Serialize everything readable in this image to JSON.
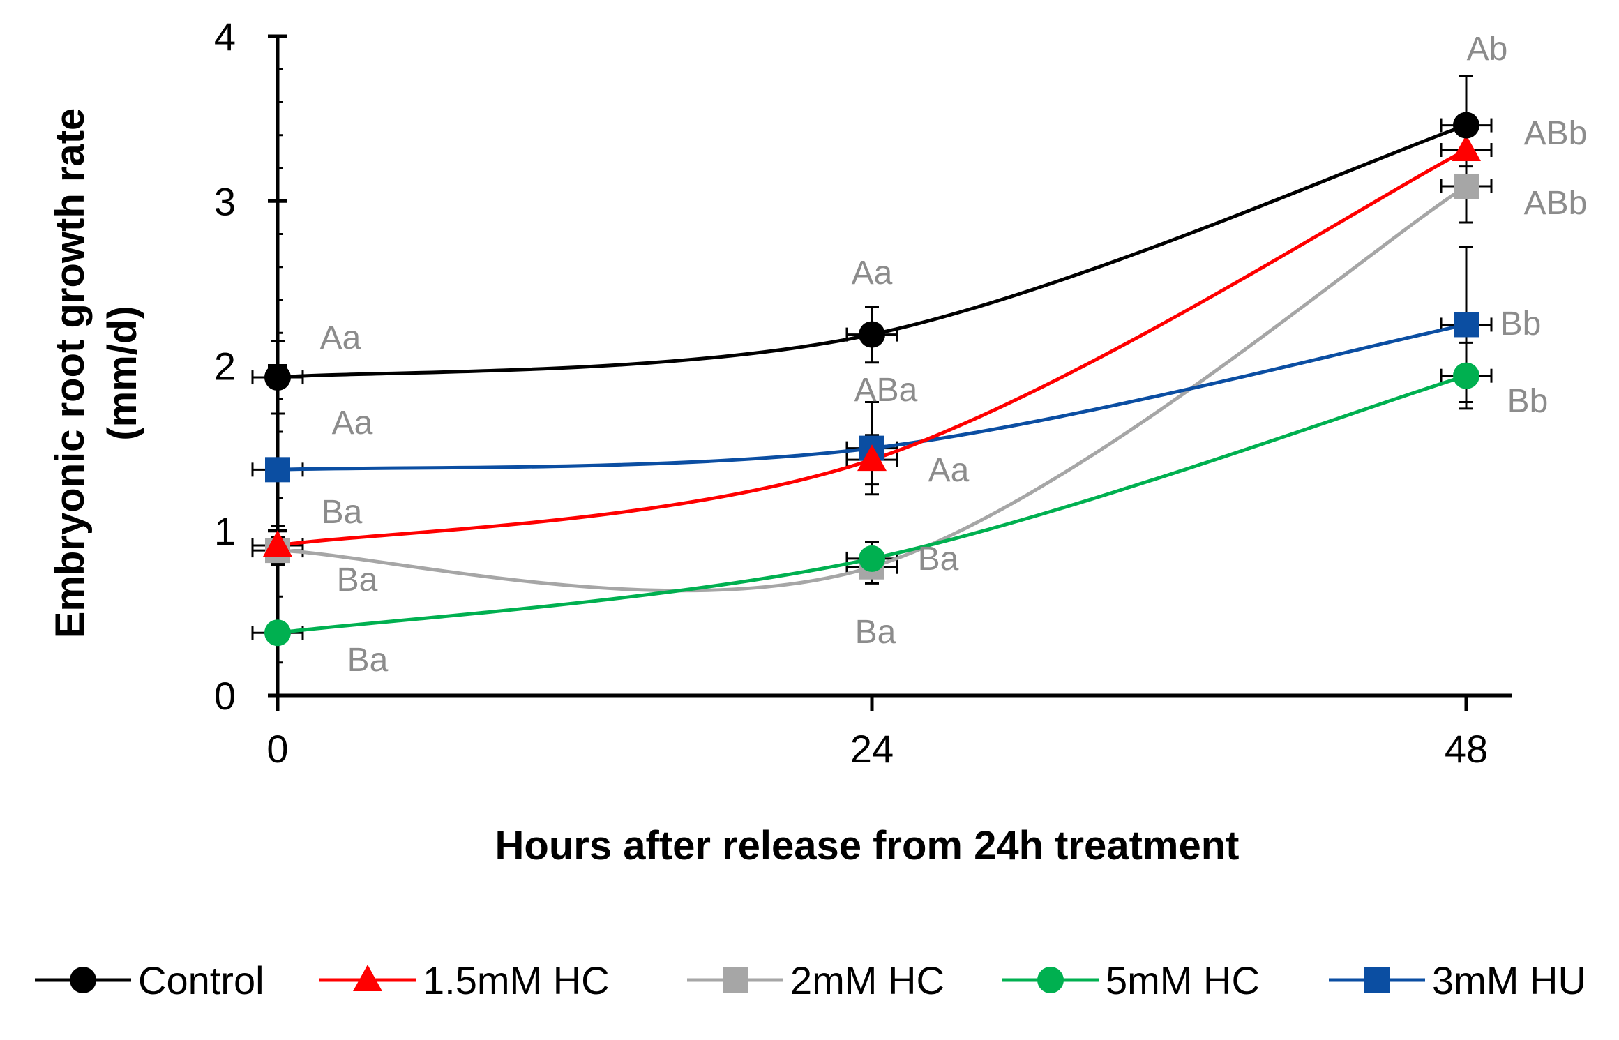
{
  "chart_data": {
    "type": "line",
    "title": "",
    "xlabel": "Hours after release from 24h treatment",
    "ylabel_line1": "Embryonic root growth rate",
    "ylabel_line2": "(mm/d)",
    "x": [
      0,
      24,
      48
    ],
    "x_tick_labels": [
      "0",
      "24",
      "48"
    ],
    "ylim": [
      0,
      4
    ],
    "y_ticks": [
      0,
      1,
      2,
      3,
      4
    ],
    "y_tick_labels": [
      "0",
      "1",
      "2",
      "3",
      "4"
    ],
    "legend_position": "bottom",
    "series": [
      {
        "name": "Control",
        "color": "#000000",
        "marker": "circle",
        "values": [
          1.93,
          2.19,
          3.46
        ],
        "errors": [
          0.22,
          0.17,
          0.3
        ],
        "annotations": [
          "Aa",
          "Aa",
          "Ab"
        ]
      },
      {
        "name": "1.5mM HC",
        "color": "#ff0000",
        "marker": "triangle",
        "values": [
          0.91,
          1.43,
          3.31
        ],
        "errors": [
          0.12,
          0.15,
          0.1
        ],
        "annotations": [
          "Ba",
          "Aa",
          "ABb"
        ]
      },
      {
        "name": "2mM HC",
        "color": "#a6a6a6",
        "marker": "square",
        "values": [
          0.88,
          0.78,
          3.09
        ],
        "errors": [
          0.08,
          0.1,
          0.22
        ],
        "annotations": [
          "Ba",
          "Ba",
          "ABb"
        ]
      },
      {
        "name": "5mM HC",
        "color": "#00b050",
        "marker": "circle",
        "values": [
          0.38,
          0.83,
          1.94
        ],
        "errors": [
          0.05,
          0.1,
          0.2
        ],
        "annotations": [
          "Ba",
          "Ba",
          "Bb"
        ]
      },
      {
        "name": "3mM HU",
        "color": "#0b4ea2",
        "marker": "square",
        "values": [
          1.37,
          1.5,
          2.25
        ],
        "errors": [
          0.06,
          0.28,
          0.47
        ],
        "annotations": [
          "Aa",
          "ABa",
          "Bb"
        ]
      }
    ]
  }
}
